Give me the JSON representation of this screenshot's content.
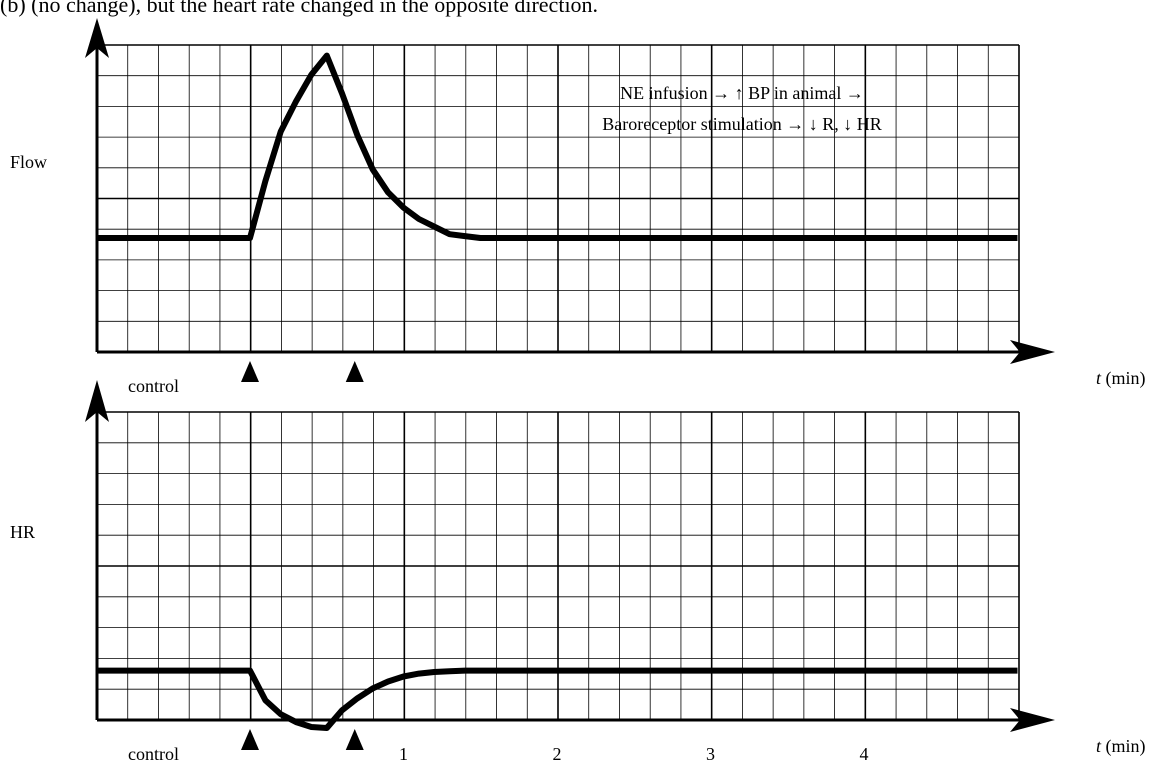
{
  "caption_fragment": "(b)          (no change), but the heart rate changed in the opposite direction.",
  "chart_data": [
    {
      "type": "line",
      "ylabel": "Flow",
      "xlabel_var": "t",
      "xlabel_unit": "(min)",
      "annotation_line1": "NE infusion → ↑ BP in animal →",
      "annotation_line2": "Baroreceptor stimulation → ↓ R, ↓ HR",
      "start_label": "control",
      "baseline": 0.3,
      "x_range": [
        -1.0,
        5.0
      ],
      "series": [
        {
          "x": [
            -1.0,
            0.0,
            0.1,
            0.2,
            0.3,
            0.4,
            0.5,
            0.6,
            0.7,
            0.8,
            0.9,
            1.0,
            1.1,
            1.2,
            1.3,
            1.4,
            1.5,
            1.6,
            5.0
          ],
          "y": [
            0.3,
            0.3,
            0.45,
            0.58,
            0.66,
            0.73,
            0.78,
            0.68,
            0.57,
            0.48,
            0.42,
            0.38,
            0.35,
            0.33,
            0.31,
            0.305,
            0.3,
            0.3,
            0.3
          ]
        }
      ],
      "markers": [
        0.0,
        0.5
      ]
    },
    {
      "type": "line",
      "ylabel": "HR",
      "xlabel_var": "t",
      "xlabel_unit": "(min)",
      "start_label": "control",
      "x_ticks": [
        1,
        2,
        3,
        4
      ],
      "baseline": 0.3,
      "x_range": [
        -1.0,
        5.0
      ],
      "series": [
        {
          "x": [
            -1.0,
            0.0,
            0.1,
            0.2,
            0.3,
            0.4,
            0.5,
            0.6,
            0.7,
            0.8,
            0.9,
            1.0,
            1.1,
            1.2,
            1.3,
            1.4,
            1.5,
            5.0
          ],
          "y": [
            0.3,
            0.3,
            0.15,
            0.08,
            0.04,
            0.015,
            0.01,
            0.1,
            0.16,
            0.21,
            0.245,
            0.27,
            0.285,
            0.293,
            0.297,
            0.3,
            0.3,
            0.3
          ]
        }
      ],
      "markers": [
        0.0,
        0.5
      ]
    }
  ]
}
